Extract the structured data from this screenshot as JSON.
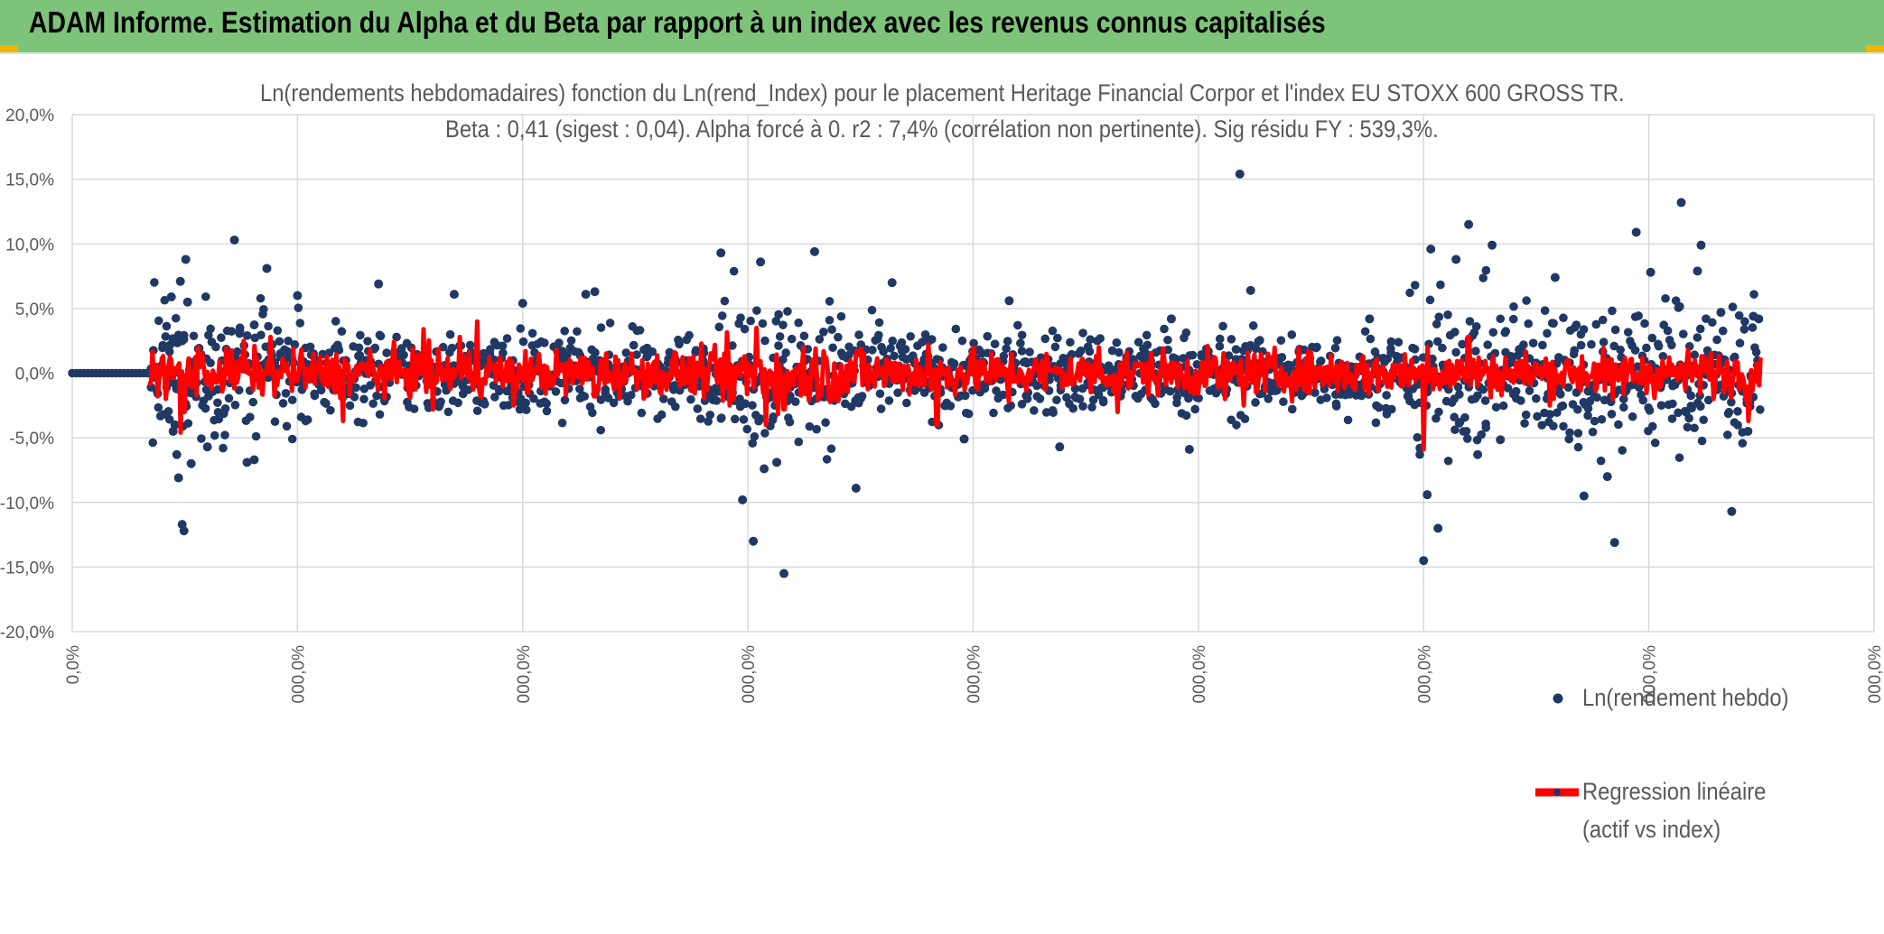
{
  "header": {
    "title": "ADAM Informe. Estimation du Alpha et du Beta par rapport à un index avec les revenus connus capitalisés",
    "background_color": "#7dc47a",
    "accent_color": "#f2b600"
  },
  "chart_data": {
    "type": "scatter",
    "title_line1": "Ln(rendements hebdomadaires) fonction du Ln(rend_Index) pour le placement Heritage Financial Corpor et l'index EU STOXX 600 GROSS TR.",
    "title_line2": "Beta : 0,41 (sigest : 0,04). Alpha forcé à 0. r2 : 7,4% (corrélation non pertinente). Sig résidu FY : 539,3%.",
    "ylim": [
      -0.2,
      0.2
    ],
    "y_ticks": [
      0.2,
      0.15,
      0.1,
      0.05,
      0.0,
      -0.05,
      -0.1,
      -0.15,
      -0.2
    ],
    "y_tick_labels": [
      "20,0%",
      "15,0%",
      "10,0%",
      "5,0%",
      "0,0%",
      "-5,0%",
      "-10,0%",
      "-15,0%",
      "-20,0%"
    ],
    "x_tick_labels": [
      "0,0%",
      "000,0%",
      "000,0%",
      "000,0%",
      "000,0%",
      "000,0%",
      "000,0%",
      "000,0%",
      "000,0%"
    ],
    "x_domain": [
      0,
      1
    ],
    "x_tick_fractions": [
      0.0,
      0.125,
      0.25,
      0.375,
      0.5,
      0.625,
      0.75,
      0.875,
      1.0
    ],
    "grid": true,
    "legend_position": "bottom-right",
    "series": [
      {
        "name": "Ln(rendement hebdo)",
        "kind": "scatter",
        "color": "#203864",
        "zero_segment_end": 0.045,
        "points_approx": [
          [
            0.055,
            0.059
          ],
          [
            0.056,
            -0.045
          ],
          [
            0.057,
            -0.04
          ],
          [
            0.058,
            -0.063
          ],
          [
            0.059,
            -0.081
          ],
          [
            0.06,
            0.071
          ],
          [
            0.061,
            -0.117
          ],
          [
            0.062,
            -0.122
          ],
          [
            0.063,
            0.088
          ],
          [
            0.064,
            0.055
          ],
          [
            0.066,
            -0.07
          ],
          [
            0.075,
            -0.057
          ],
          [
            0.09,
            0.103
          ],
          [
            0.097,
            -0.069
          ],
          [
            0.101,
            -0.067
          ],
          [
            0.108,
            0.081
          ],
          [
            0.125,
            0.06
          ],
          [
            0.17,
            0.069
          ],
          [
            0.212,
            0.061
          ],
          [
            0.25,
            0.054
          ],
          [
            0.285,
            0.061
          ],
          [
            0.29,
            0.063
          ],
          [
            0.36,
            0.093
          ],
          [
            0.372,
            -0.098
          ],
          [
            0.378,
            -0.13
          ],
          [
            0.382,
            0.086
          ],
          [
            0.384,
            -0.074
          ],
          [
            0.391,
            -0.069
          ],
          [
            0.395,
            -0.155
          ],
          [
            0.412,
            0.094
          ],
          [
            0.435,
            -0.089
          ],
          [
            0.455,
            0.07
          ],
          [
            0.495,
            -0.051
          ],
          [
            0.52,
            0.056
          ],
          [
            0.548,
            -0.057
          ],
          [
            0.61,
            0.042
          ],
          [
            0.62,
            -0.059
          ],
          [
            0.648,
            0.154
          ],
          [
            0.654,
            0.064
          ],
          [
            0.72,
            0.042
          ],
          [
            0.748,
            -0.058
          ],
          [
            0.75,
            -0.145
          ],
          [
            0.752,
            -0.094
          ],
          [
            0.754,
            0.096
          ],
          [
            0.758,
            -0.12
          ],
          [
            0.768,
            0.088
          ],
          [
            0.775,
            0.115
          ],
          [
            0.78,
            -0.063
          ],
          [
            0.788,
            0.099
          ],
          [
            0.823,
            0.074
          ],
          [
            0.839,
            -0.095
          ],
          [
            0.852,
            -0.08
          ],
          [
            0.856,
            -0.131
          ],
          [
            0.868,
            0.109
          ],
          [
            0.876,
            0.078
          ],
          [
            0.893,
            0.132
          ],
          [
            0.902,
            0.079
          ],
          [
            0.904,
            0.099
          ],
          [
            0.915,
            0.047
          ],
          [
            0.921,
            -0.107
          ],
          [
            0.93,
            -0.045
          ],
          [
            0.933,
            0.044
          ],
          [
            0.936,
            0.042
          ]
        ]
      },
      {
        "name": "Regression linéaire (actif vs index)",
        "kind": "line",
        "color": "#ff0000",
        "spikes_approx": [
          [
            0.06,
            -0.046
          ],
          [
            0.062,
            -0.03
          ],
          [
            0.07,
            0.02
          ],
          [
            0.095,
            0.025
          ],
          [
            0.11,
            0.028
          ],
          [
            0.15,
            -0.037
          ],
          [
            0.165,
            0.018
          ],
          [
            0.195,
            0.034
          ],
          [
            0.2,
            -0.028
          ],
          [
            0.215,
            0.028
          ],
          [
            0.225,
            0.04
          ],
          [
            0.245,
            -0.025
          ],
          [
            0.29,
            -0.018
          ],
          [
            0.365,
            -0.025
          ],
          [
            0.38,
            0.035
          ],
          [
            0.385,
            -0.04
          ],
          [
            0.395,
            -0.028
          ],
          [
            0.42,
            -0.02
          ],
          [
            0.475,
            0.022
          ],
          [
            0.48,
            -0.04
          ],
          [
            0.52,
            -0.022
          ],
          [
            0.57,
            0.02
          ],
          [
            0.58,
            -0.03
          ],
          [
            0.64,
            -0.02
          ],
          [
            0.65,
            -0.025
          ],
          [
            0.75,
            -0.059
          ],
          [
            0.752,
            0.02
          ],
          [
            0.775,
            0.028
          ],
          [
            0.82,
            -0.025
          ],
          [
            0.855,
            -0.02
          ],
          [
            0.93,
            -0.037
          ],
          [
            0.937,
            0.012
          ]
        ]
      }
    ]
  },
  "legend": {
    "items": [
      "Ln(rendement hebdo)",
      "Regression linéaire",
      "(actif vs index)"
    ]
  }
}
